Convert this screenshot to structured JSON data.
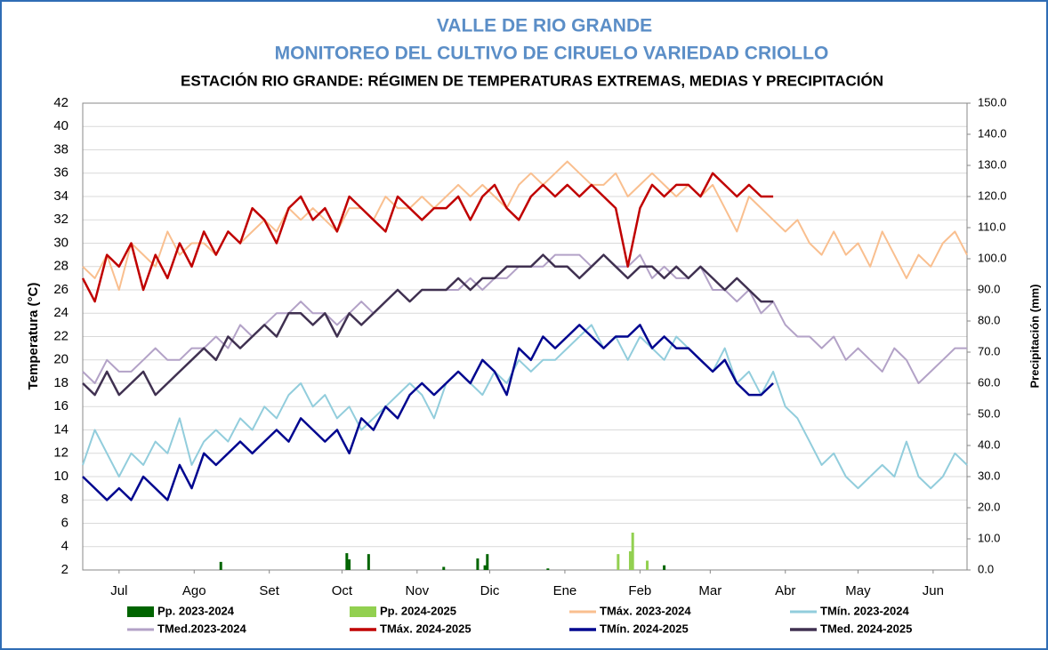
{
  "chart_data": {
    "type": "line",
    "title": [
      "VALLE DE RIO GRANDE",
      "MONITOREO DEL CULTIVO DE CIRUELO VARIEDAD CRIOLLO"
    ],
    "subtitle": "ESTACIÓN RIO GRANDE: RÉGIMEN DE TEMPERATURAS EXTREMAS, MEDIAS Y PRECIPITACIÓN",
    "y_label": "Temperatura (°C)",
    "y2_label": "Precipitación (mm)",
    "xlim": [
      0,
      365
    ],
    "xticks": [
      {
        "value": 15,
        "label": "Jul"
      },
      {
        "value": 46,
        "label": "Ago"
      },
      {
        "value": 77,
        "label": "Set"
      },
      {
        "value": 107,
        "label": "Oct"
      },
      {
        "value": 138,
        "label": "Nov"
      },
      {
        "value": 168,
        "label": "Dic"
      },
      {
        "value": 199,
        "label": "Ene"
      },
      {
        "value": 230,
        "label": "Feb"
      },
      {
        "value": 259,
        "label": "Mar"
      },
      {
        "value": 290,
        "label": "Abr"
      },
      {
        "value": 320,
        "label": "May"
      },
      {
        "value": 351,
        "label": "Jun"
      }
    ],
    "ylim": [
      2,
      42
    ],
    "yticks": [
      2,
      4,
      6,
      8,
      10,
      12,
      14,
      16,
      18,
      20,
      22,
      24,
      26,
      28,
      30,
      32,
      34,
      36,
      38,
      40,
      42
    ],
    "y2lim": [
      0,
      150
    ],
    "y2ticks": [
      {
        "value": 0,
        "label": "0.0"
      },
      {
        "value": 10,
        "label": "10.0"
      },
      {
        "value": 20,
        "label": "20.0"
      },
      {
        "value": 30,
        "label": "30.0"
      },
      {
        "value": 40,
        "label": "40.0"
      },
      {
        "value": 50,
        "label": "50.0"
      },
      {
        "value": 60,
        "label": "60.0"
      },
      {
        "value": 70,
        "label": "70.0"
      },
      {
        "value": 80,
        "label": "80.0"
      },
      {
        "value": 90,
        "label": "90.0"
      },
      {
        "value": 100,
        "label": "100.0"
      },
      {
        "value": 110,
        "label": "110.0"
      },
      {
        "value": 120,
        "label": "120.0"
      },
      {
        "value": 130,
        "label": "130.0"
      },
      {
        "value": 140,
        "label": "140.0"
      },
      {
        "value": 150,
        "label": "150.0"
      }
    ],
    "grid": true,
    "legend": "bottom",
    "x": [
      0,
      5,
      10,
      15,
      20,
      25,
      30,
      35,
      40,
      45,
      50,
      55,
      60,
      65,
      70,
      75,
      80,
      85,
      90,
      95,
      100,
      105,
      110,
      115,
      120,
      125,
      130,
      135,
      140,
      145,
      150,
      155,
      160,
      165,
      170,
      175,
      180,
      185,
      190,
      195,
      200,
      205,
      210,
      215,
      220,
      225,
      230,
      235,
      240,
      245,
      250,
      255,
      260,
      265,
      270,
      275,
      280,
      285,
      290,
      295,
      300,
      305,
      310,
      315,
      320,
      325,
      330,
      335,
      340,
      345,
      350,
      355,
      360,
      365
    ],
    "series": [
      {
        "name": "Pp. 2023-2024",
        "type": "bar",
        "axis": "y2",
        "color": "#006400",
        "x": [
          57,
          109,
          110,
          118,
          149,
          163,
          166,
          167,
          192,
          240
        ],
        "values": [
          2.6,
          5.4,
          3.4,
          5.1,
          1,
          3.7,
          1.5,
          5.1,
          0.5,
          1.5
        ]
      },
      {
        "name": "Pp. 2024-2025",
        "type": "bar",
        "axis": "y2",
        "color": "#92d050",
        "x": [
          221,
          226,
          227,
          233
        ],
        "values": [
          5.1,
          6,
          12,
          3
        ]
      },
      {
        "name": "TMáx. 2023-2024",
        "type": "line",
        "color": "#f9bf8f",
        "width": 2,
        "values": [
          28,
          27,
          29,
          26,
          30,
          29,
          28,
          31,
          29,
          30,
          30,
          29,
          31,
          30,
          31,
          32,
          31,
          33,
          32,
          33,
          32,
          31,
          33,
          33,
          32,
          34,
          33,
          33,
          34,
          33,
          34,
          35,
          34,
          35,
          34,
          33,
          35,
          36,
          35,
          36,
          37,
          36,
          35,
          35,
          36,
          34,
          35,
          36,
          35,
          34,
          35,
          34,
          35,
          33,
          31,
          34,
          33,
          32,
          31,
          32,
          30,
          29,
          31,
          29,
          30,
          28,
          31,
          29,
          27,
          29,
          28,
          30,
          31,
          29
        ]
      },
      {
        "name": "TMín. 2023-2024",
        "type": "line",
        "color": "#92cddc",
        "width": 2,
        "values": [
          11,
          14,
          12,
          10,
          12,
          11,
          13,
          12,
          15,
          11,
          13,
          14,
          13,
          15,
          14,
          16,
          15,
          17,
          18,
          16,
          17,
          15,
          16,
          14,
          15,
          16,
          17,
          18,
          17,
          15,
          18,
          19,
          18,
          17,
          19,
          18,
          20,
          19,
          20,
          20,
          21,
          22,
          23,
          21,
          22,
          20,
          22,
          21,
          20,
          22,
          21,
          20,
          19,
          21,
          18,
          19,
          17,
          19,
          16,
          15,
          13,
          11,
          12,
          10,
          9,
          10,
          11,
          10,
          13,
          10,
          9,
          10,
          12,
          11
        ]
      },
      {
        "name": "TMed.2023-2024",
        "type": "line",
        "color": "#b3a2c7",
        "width": 2,
        "values": [
          19,
          18,
          20,
          19,
          19,
          20,
          21,
          20,
          20,
          21,
          21,
          22,
          21,
          23,
          22,
          23,
          24,
          24,
          25,
          24,
          24,
          23,
          24,
          25,
          24,
          25,
          26,
          25,
          26,
          26,
          26,
          26,
          27,
          26,
          27,
          27,
          28,
          28,
          28,
          29,
          29,
          29,
          28,
          29,
          28,
          28,
          29,
          27,
          28,
          27,
          27,
          28,
          26,
          26,
          25,
          26,
          24,
          25,
          23,
          22,
          22,
          21,
          22,
          20,
          21,
          20,
          19,
          21,
          20,
          18,
          19,
          20,
          21,
          21
        ]
      },
      {
        "name": "TMáx. 2024-2025",
        "type": "line",
        "color": "#c00000",
        "width": 2.5,
        "values": [
          27,
          25,
          29,
          28,
          30,
          26,
          29,
          27,
          30,
          28,
          31,
          29,
          31,
          30,
          33,
          32,
          30,
          33,
          34,
          32,
          33,
          31,
          34,
          33,
          32,
          31,
          34,
          33,
          32,
          33,
          33,
          34,
          32,
          34,
          35,
          33,
          32,
          34,
          35,
          34,
          35,
          34,
          35,
          34,
          33,
          28,
          33,
          35,
          34,
          35,
          35,
          34,
          36,
          35,
          34,
          35,
          34,
          34,
          null,
          null,
          null,
          null,
          null,
          null,
          null,
          null,
          null,
          null,
          null,
          null,
          null,
          null,
          null,
          null
        ]
      },
      {
        "name": "TMín. 2024-2025",
        "type": "line",
        "color": "#00068f",
        "width": 2.5,
        "values": [
          10,
          9,
          8,
          9,
          8,
          10,
          9,
          8,
          11,
          9,
          12,
          11,
          12,
          13,
          12,
          13,
          14,
          13,
          15,
          14,
          13,
          14,
          12,
          15,
          14,
          16,
          15,
          17,
          18,
          17,
          18,
          19,
          18,
          20,
          19,
          17,
          21,
          20,
          22,
          21,
          22,
          23,
          22,
          21,
          22,
          22,
          23,
          21,
          22,
          21,
          21,
          20,
          19,
          20,
          18,
          17,
          17,
          18,
          null,
          null,
          null,
          null,
          null,
          null,
          null,
          null,
          null,
          null,
          null,
          null,
          null,
          null,
          null,
          null
        ]
      },
      {
        "name": "TMed. 2024-2025",
        "type": "line",
        "color": "#403151",
        "width": 2.5,
        "values": [
          18,
          17,
          19,
          17,
          18,
          19,
          17,
          18,
          19,
          20,
          21,
          20,
          22,
          21,
          22,
          23,
          22,
          24,
          24,
          23,
          24,
          22,
          24,
          23,
          24,
          25,
          26,
          25,
          26,
          26,
          26,
          27,
          26,
          27,
          27,
          28,
          28,
          28,
          29,
          28,
          28,
          27,
          28,
          29,
          28,
          27,
          28,
          28,
          27,
          28,
          27,
          28,
          27,
          26,
          27,
          26,
          25,
          25,
          null,
          null,
          null,
          null,
          null,
          null,
          null,
          null,
          null,
          null,
          null,
          null,
          null,
          null,
          null,
          null
        ]
      }
    ]
  }
}
